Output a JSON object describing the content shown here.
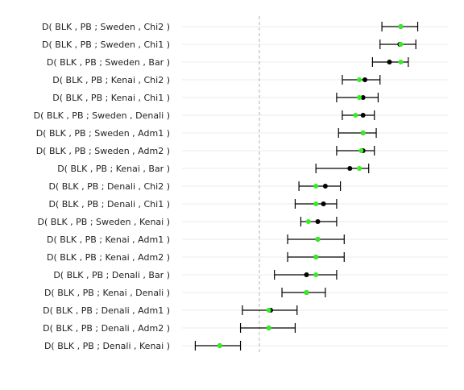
{
  "chart_data": {
    "type": "scatter",
    "orientation": "horizontal",
    "title": "",
    "xlabel": "",
    "ylabel": "",
    "reference_line": {
      "x": 0,
      "style": "dashed",
      "color": "#b3b3b3"
    },
    "xlim": [
      -0.41,
      1.0
    ],
    "grid": "horizontal only",
    "legend": "none",
    "colors": {
      "point_estimate": "#000000",
      "resampled_mean": "#33ee22",
      "error_bar": "#000000",
      "grid": "#ebebeb"
    },
    "rows": [
      {
        "label": "D( BLK , PB ; Sweden , Chi2 )",
        "estimate": 0.75,
        "mean": 0.75,
        "ci": [
          0.65,
          0.84
        ]
      },
      {
        "label": "D( BLK , PB ; Sweden , Chi1 )",
        "estimate": 0.745,
        "mean": 0.75,
        "ci": [
          0.64,
          0.83
        ]
      },
      {
        "label": "D( BLK , PB ; Sweden , Bar )",
        "estimate": 0.69,
        "mean": 0.75,
        "ci": [
          0.6,
          0.79
        ]
      },
      {
        "label": "D( BLK , PB ; Kenai , Chi2 )",
        "estimate": 0.56,
        "mean": 0.53,
        "ci": [
          0.44,
          0.64
        ]
      },
      {
        "label": "D( BLK , PB ; Kenai , Chi1 )",
        "estimate": 0.55,
        "mean": 0.53,
        "ci": [
          0.41,
          0.63
        ]
      },
      {
        "label": "D( BLK , PB ; Sweden , Denali )",
        "estimate": 0.55,
        "mean": 0.51,
        "ci": [
          0.44,
          0.61
        ]
      },
      {
        "label": "D( BLK , PB ; Sweden , Adm1 )",
        "estimate": 0.55,
        "mean": 0.55,
        "ci": [
          0.42,
          0.62
        ]
      },
      {
        "label": "D( BLK , PB ; Sweden , Adm2 )",
        "estimate": 0.55,
        "mean": 0.54,
        "ci": [
          0.41,
          0.61
        ]
      },
      {
        "label": "D( BLK , PB ; Kenai , Bar )",
        "estimate": 0.48,
        "mean": 0.53,
        "ci": [
          0.3,
          0.58
        ]
      },
      {
        "label": "D( BLK , PB ; Denali , Chi2 )",
        "estimate": 0.35,
        "mean": 0.3,
        "ci": [
          0.21,
          0.43
        ]
      },
      {
        "label": "D( BLK , PB ; Denali , Chi1 )",
        "estimate": 0.34,
        "mean": 0.3,
        "ci": [
          0.19,
          0.41
        ]
      },
      {
        "label": "D( BLK , PB ; Sweden , Kenai )",
        "estimate": 0.31,
        "mean": 0.26,
        "ci": [
          0.22,
          0.41
        ]
      },
      {
        "label": "D( BLK , PB ; Kenai , Adm1 )",
        "estimate": 0.31,
        "mean": 0.31,
        "ci": [
          0.15,
          0.45
        ]
      },
      {
        "label": "D( BLK , PB ; Kenai , Adm2 )",
        "estimate": 0.3,
        "mean": 0.3,
        "ci": [
          0.15,
          0.45
        ]
      },
      {
        "label": "D( BLK , PB ; Denali , Bar )",
        "estimate": 0.25,
        "mean": 0.3,
        "ci": [
          0.08,
          0.41
        ]
      },
      {
        "label": "D( BLK , PB ; Kenai , Denali )",
        "estimate": 0.25,
        "mean": 0.25,
        "ci": [
          0.12,
          0.35
        ]
      },
      {
        "label": "D( BLK , PB ; Denali , Adm1 )",
        "estimate": 0.06,
        "mean": 0.05,
        "ci": [
          -0.09,
          0.2
        ]
      },
      {
        "label": "D( BLK , PB ; Denali , Adm2 )",
        "estimate": 0.05,
        "mean": 0.05,
        "ci": [
          -0.1,
          0.19
        ]
      },
      {
        "label": "D( BLK , PB ; Denali , Kenai )",
        "estimate": -0.21,
        "mean": -0.21,
        "ci": [
          -0.34,
          -0.1
        ]
      }
    ]
  }
}
